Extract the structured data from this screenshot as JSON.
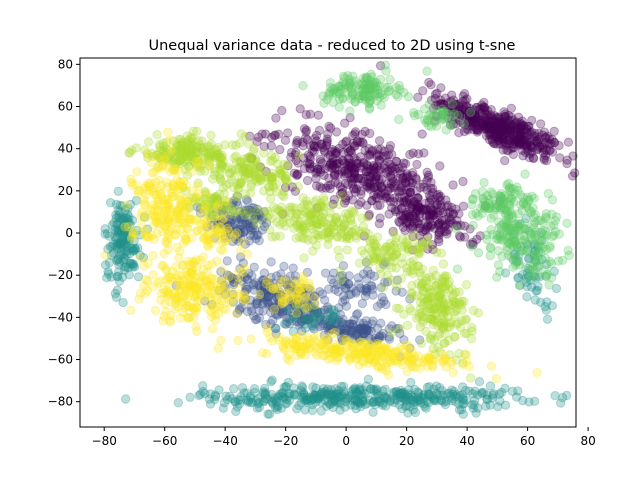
{
  "chart_data": {
    "type": "scatter",
    "title": "Unequal variance data - reduced to 2D using t-sne",
    "xlabel": "",
    "ylabel": "",
    "xlim": [
      -88,
      76
    ],
    "ylim": [
      -92,
      83
    ],
    "xticks": [
      -80,
      -60,
      -40,
      -20,
      0,
      20,
      40,
      60,
      80
    ],
    "yticks": [
      -80,
      -60,
      -40,
      -20,
      0,
      20,
      40,
      60,
      80
    ],
    "point_alpha": 0.3,
    "grid": false,
    "legend": "none",
    "series": [
      {
        "color": "#440154",
        "clusters": [
          {
            "center": [
              50,
              50
            ],
            "spread": [
              12,
              4
            ],
            "angle": -35,
            "n": 420
          },
          {
            "center": [
              3,
              30
            ],
            "spread": [
              15,
              8
            ],
            "angle": -35,
            "n": 380
          },
          {
            "center": [
              25,
              10
            ],
            "spread": [
              10,
              6
            ],
            "angle": -40,
            "n": 200
          }
        ]
      },
      {
        "color": "#3b528b",
        "clusters": [
          {
            "center": [
              -35,
              5
            ],
            "spread": [
              6,
              5
            ],
            "angle": -30,
            "n": 120
          },
          {
            "center": [
              -22,
              -30
            ],
            "spread": [
              10,
              6
            ],
            "angle": -30,
            "n": 230
          },
          {
            "center": [
              0,
              -45
            ],
            "spread": [
              10,
              3
            ],
            "angle": -15,
            "n": 140
          },
          {
            "center": [
              5,
              -25
            ],
            "spread": [
              6,
              5
            ],
            "angle": -20,
            "n": 60
          }
        ]
      },
      {
        "color": "#21918c",
        "clusters": [
          {
            "center": [
              5,
              -78
            ],
            "spread": [
              26,
              3
            ],
            "angle": 0,
            "n": 420
          },
          {
            "center": [
              -74,
              -4
            ],
            "spread": [
              3,
              10
            ],
            "angle": 0,
            "n": 150
          },
          {
            "center": [
              -10,
              -40
            ],
            "spread": [
              5,
              3
            ],
            "angle": 0,
            "n": 30
          },
          {
            "center": [
              62,
              -15
            ],
            "spread": [
              4,
              10
            ],
            "angle": 0,
            "n": 60
          }
        ]
      },
      {
        "color": "#5ec962",
        "clusters": [
          {
            "center": [
              5,
              68
            ],
            "spread": [
              6,
              4
            ],
            "angle": 0,
            "n": 130
          },
          {
            "center": [
              55,
              0
            ],
            "spread": [
              6,
              10
            ],
            "angle": 0,
            "n": 140
          },
          {
            "center": [
              50,
              15
            ],
            "spread": [
              6,
              4
            ],
            "angle": 0,
            "n": 60
          },
          {
            "center": [
              30,
              55
            ],
            "spread": [
              5,
              3
            ],
            "angle": 0,
            "n": 40
          },
          {
            "center": [
              65,
              -5
            ],
            "spread": [
              4,
              8
            ],
            "angle": 0,
            "n": 60
          }
        ]
      },
      {
        "color": "#addc30",
        "clusters": [
          {
            "center": [
              -52,
              38
            ],
            "spread": [
              9,
              4
            ],
            "angle": 0,
            "n": 180
          },
          {
            "center": [
              -32,
              28
            ],
            "spread": [
              8,
              4
            ],
            "angle": -10,
            "n": 130
          },
          {
            "center": [
              -10,
              5
            ],
            "spread": [
              10,
              5
            ],
            "angle": -20,
            "n": 180
          },
          {
            "center": [
              30,
              -35
            ],
            "spread": [
              5,
              10
            ],
            "angle": 10,
            "n": 200
          },
          {
            "center": [
              15,
              -10
            ],
            "spread": [
              7,
              5
            ],
            "angle": 0,
            "n": 90
          },
          {
            "center": [
              -45,
              15
            ],
            "spread": [
              5,
              4
            ],
            "angle": 0,
            "n": 60
          }
        ]
      },
      {
        "color": "#fde725",
        "clusters": [
          {
            "center": [
              -58,
              10
            ],
            "spread": [
              6,
              14
            ],
            "angle": 0,
            "n": 240
          },
          {
            "center": [
              -50,
              -28
            ],
            "spread": [
              8,
              7
            ],
            "angle": 0,
            "n": 200
          },
          {
            "center": [
              5,
              -57
            ],
            "spread": [
              18,
              3
            ],
            "angle": -10,
            "n": 260
          },
          {
            "center": [
              -18,
              -28
            ],
            "spread": [
              4,
              4
            ],
            "angle": 0,
            "n": 50
          },
          {
            "center": [
              -42,
              0
            ],
            "spread": [
              4,
              4
            ],
            "angle": 0,
            "n": 40
          }
        ]
      }
    ]
  }
}
